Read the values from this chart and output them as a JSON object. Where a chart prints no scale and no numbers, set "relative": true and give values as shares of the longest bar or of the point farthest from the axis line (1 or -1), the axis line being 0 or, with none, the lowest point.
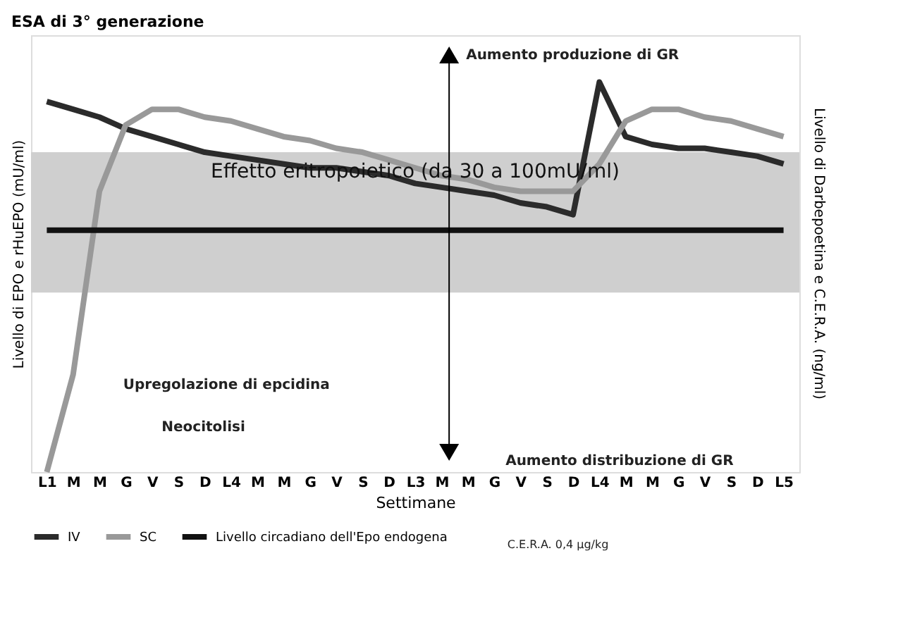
{
  "chart_data": {
    "type": "line",
    "title": "ESA di 3° generazione",
    "xlabel": "Settimane",
    "ylabel": "Livello di EPO e rHuEPO (mU/ml)",
    "y2label": "Livello di Darbepoetina e C.E.R.A. (ng/ml)",
    "relative": true,
    "categories": [
      "L1",
      "M",
      "M",
      "G",
      "V",
      "S",
      "D",
      "L4",
      "M",
      "M",
      "G",
      "V",
      "S",
      "D",
      "L3",
      "M",
      "M",
      "G",
      "V",
      "S",
      "D",
      "L4",
      "M",
      "M",
      "G",
      "V",
      "S",
      "D",
      "L5"
    ],
    "series": [
      {
        "name": "IV",
        "color": "#2b2b2b",
        "values": [
          0.95,
          0.93,
          0.91,
          0.88,
          0.86,
          0.84,
          0.82,
          0.81,
          0.8,
          0.79,
          0.78,
          0.78,
          0.77,
          0.76,
          0.74,
          0.73,
          0.72,
          0.71,
          0.69,
          0.68,
          0.66,
          1.0,
          0.86,
          0.84,
          0.83,
          0.83,
          0.82,
          0.81,
          0.79
        ]
      },
      {
        "name": "SC",
        "color": "#999999",
        "values": [
          0,
          0.25,
          0.72,
          0.89,
          0.93,
          0.93,
          0.91,
          0.9,
          0.88,
          0.86,
          0.85,
          0.83,
          0.82,
          0.8,
          0.78,
          0.76,
          0.75,
          0.73,
          0.72,
          0.72,
          0.72,
          0.79,
          0.9,
          0.93,
          0.93,
          0.91,
          0.9,
          0.88,
          0.86
        ]
      },
      {
        "name": "Livello circadiano dell'Epo endogena",
        "color": "#111111",
        "values": [
          0.62,
          0.62,
          0.62,
          0.62,
          0.62,
          0.62,
          0.62,
          0.62,
          0.62,
          0.62,
          0.62,
          0.62,
          0.62,
          0.62,
          0.62,
          0.62,
          0.62,
          0.62,
          0.62,
          0.62,
          0.62,
          0.62,
          0.62,
          0.62,
          0.62,
          0.62,
          0.62,
          0.62,
          0.62
        ]
      }
    ],
    "bands": [
      {
        "axis": "y",
        "from": 0.46,
        "to": 0.82,
        "label": "Effetto eritropoietico (da 30 a 100mU/ml)",
        "color": "#cfcfcf"
      }
    ],
    "annotations": [
      "Aumento produzione di GR",
      "Aumento distribuzione di GR",
      "Upregolazione di epcidina",
      "Neocitolisi",
      "C.E.R.A. 0,4 µg/kg"
    ],
    "legend": "bottom left",
    "grid": false,
    "marker": "none",
    "line_style": "solid"
  }
}
